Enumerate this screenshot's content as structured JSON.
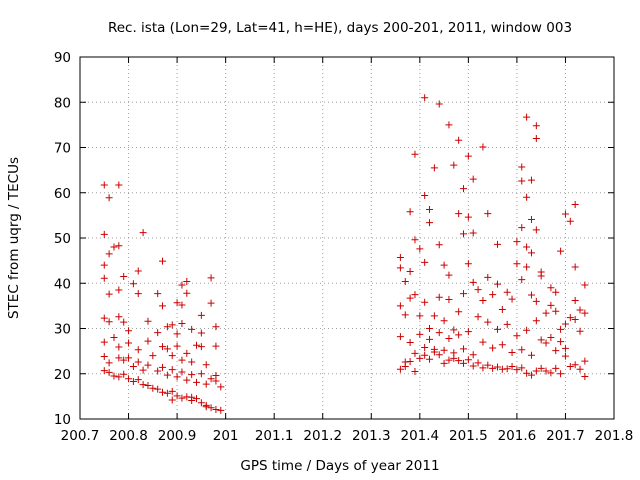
{
  "chart_data": {
    "type": "scatter",
    "title": "Rec. ista (Lon=29, Lat=41, h=HE), days 200-201, 2011, window 003",
    "xlabel": "GPS time / Days of year 2011",
    "ylabel": "STEC from uqrg / TECUs",
    "xlim": [
      200.7,
      201.8
    ],
    "ylim": [
      10,
      90
    ],
    "x_ticks": [
      "200.7",
      "200.8",
      "200.9",
      "201",
      "201.1",
      "201.2",
      "201.3",
      "201.4",
      "201.5",
      "201.6",
      "201.7",
      "201.8"
    ],
    "y_ticks": [
      "10",
      "20",
      "30",
      "40",
      "50",
      "60",
      "70",
      "80",
      "90"
    ],
    "grid": true,
    "marker": "+",
    "color": "#cc0000",
    "series": [
      {
        "name": "STEC",
        "points": [
          [
            200.75,
            61.7
          ],
          [
            200.78,
            61.7
          ],
          [
            200.76,
            58.9
          ],
          [
            200.83,
            51.2
          ],
          [
            200.75,
            50.8
          ],
          [
            200.77,
            48.0
          ],
          [
            200.78,
            48.3
          ],
          [
            200.76,
            46.5
          ],
          [
            200.87,
            44.9
          ],
          [
            200.75,
            44.0
          ],
          [
            200.82,
            42.7
          ],
          [
            200.79,
            41.5
          ],
          [
            200.75,
            41.1
          ],
          [
            200.81,
            39.9
          ],
          [
            200.78,
            38.5
          ],
          [
            200.76,
            37.6
          ],
          [
            200.82,
            37.7
          ],
          [
            200.86,
            37.7
          ],
          [
            200.87,
            35.0
          ],
          [
            200.9,
            35.7
          ],
          [
            200.92,
            40.4
          ],
          [
            200.91,
            39.6
          ],
          [
            200.92,
            37.8
          ],
          [
            200.91,
            35.2
          ],
          [
            200.97,
            41.2
          ],
          [
            200.97,
            35.6
          ],
          [
            200.95,
            32.9
          ],
          [
            200.98,
            30.4
          ],
          [
            200.95,
            29.0
          ],
          [
            200.98,
            26.1
          ],
          [
            200.75,
            32.3
          ],
          [
            200.76,
            31.5
          ],
          [
            200.78,
            32.6
          ],
          [
            200.79,
            31.4
          ],
          [
            200.84,
            31.6
          ],
          [
            200.8,
            29.5
          ],
          [
            200.86,
            29.1
          ],
          [
            200.88,
            30.4
          ],
          [
            200.89,
            30.8
          ],
          [
            200.9,
            28.8
          ],
          [
            200.91,
            31.1
          ],
          [
            200.93,
            29.8
          ],
          [
            200.75,
            27.0
          ],
          [
            200.77,
            28.0
          ],
          [
            200.78,
            25.9
          ],
          [
            200.8,
            26.8
          ],
          [
            200.82,
            25.3
          ],
          [
            200.84,
            27.2
          ],
          [
            200.85,
            24.0
          ],
          [
            200.87,
            26.0
          ],
          [
            200.88,
            25.5
          ],
          [
            200.89,
            24.0
          ],
          [
            200.9,
            26.1
          ],
          [
            200.91,
            23.0
          ],
          [
            200.92,
            24.5
          ],
          [
            200.93,
            22.6
          ],
          [
            200.94,
            26.3
          ],
          [
            200.95,
            26.0
          ],
          [
            200.96,
            22.0
          ],
          [
            200.75,
            23.8
          ],
          [
            200.76,
            22.4
          ],
          [
            200.78,
            23.5
          ],
          [
            200.79,
            23.0
          ],
          [
            200.8,
            23.5
          ],
          [
            200.81,
            21.6
          ],
          [
            200.82,
            22.6
          ],
          [
            200.83,
            20.8
          ],
          [
            200.84,
            21.9
          ],
          [
            200.86,
            20.6
          ],
          [
            200.87,
            21.4
          ],
          [
            200.88,
            19.7
          ],
          [
            200.89,
            20.9
          ],
          [
            200.9,
            19.3
          ],
          [
            200.91,
            20.4
          ],
          [
            200.92,
            18.6
          ],
          [
            200.93,
            19.8
          ],
          [
            200.94,
            18.1
          ],
          [
            200.95,
            20.0
          ],
          [
            200.96,
            17.7
          ],
          [
            200.97,
            18.9
          ],
          [
            200.98,
            19.6
          ],
          [
            200.98,
            18.4
          ],
          [
            200.99,
            17.1
          ],
          [
            200.75,
            20.7
          ],
          [
            200.76,
            20.3
          ],
          [
            200.77,
            19.5
          ],
          [
            200.78,
            19.3
          ],
          [
            200.79,
            19.9
          ],
          [
            200.8,
            18.9
          ],
          [
            200.81,
            18.3
          ],
          [
            200.82,
            18.7
          ],
          [
            200.83,
            17.6
          ],
          [
            200.84,
            17.4
          ],
          [
            200.85,
            16.8
          ],
          [
            200.86,
            16.6
          ],
          [
            200.87,
            15.9
          ],
          [
            200.88,
            15.7
          ],
          [
            200.89,
            16.1
          ],
          [
            200.9,
            15.1
          ],
          [
            200.91,
            14.6
          ],
          [
            200.92,
            14.9
          ],
          [
            200.93,
            14.1
          ],
          [
            200.94,
            14.5
          ],
          [
            200.95,
            13.6
          ],
          [
            200.96,
            13.0
          ],
          [
            200.97,
            12.5
          ],
          [
            200.98,
            12.1
          ],
          [
            200.99,
            11.9
          ],
          [
            200.89,
            14.2
          ],
          [
            200.93,
            14.8
          ],
          [
            200.96,
            12.7
          ],
          [
            201.36,
            45.7
          ],
          [
            201.36,
            43.4
          ],
          [
            201.37,
            40.4
          ],
          [
            201.38,
            55.8
          ],
          [
            201.39,
            49.6
          ],
          [
            201.4,
            47.6
          ],
          [
            201.39,
            68.5
          ],
          [
            201.41,
            81.0
          ],
          [
            201.41,
            59.4
          ],
          [
            201.42,
            53.4
          ],
          [
            201.43,
            65.5
          ],
          [
            201.44,
            79.6
          ],
          [
            201.46,
            75.0
          ],
          [
            201.47,
            66.1
          ],
          [
            201.48,
            71.6
          ],
          [
            201.49,
            60.9
          ],
          [
            201.5,
            68.1
          ],
          [
            201.51,
            63.0
          ],
          [
            201.53,
            70.1
          ],
          [
            201.48,
            55.4
          ],
          [
            201.49,
            50.9
          ],
          [
            201.5,
            54.6
          ],
          [
            201.51,
            51.1
          ],
          [
            201.54,
            55.4
          ],
          [
            201.56,
            48.6
          ],
          [
            201.44,
            48.5
          ],
          [
            201.42,
            56.3
          ],
          [
            201.45,
            44.0
          ],
          [
            201.46,
            41.8
          ],
          [
            201.41,
            44.6
          ],
          [
            201.38,
            42.6
          ],
          [
            201.36,
            35.0
          ],
          [
            201.37,
            33.0
          ],
          [
            201.38,
            36.7
          ],
          [
            201.39,
            37.5
          ],
          [
            201.4,
            32.8
          ],
          [
            201.41,
            35.8
          ],
          [
            201.42,
            30.0
          ],
          [
            201.43,
            32.8
          ],
          [
            201.44,
            36.9
          ],
          [
            201.45,
            31.7
          ],
          [
            201.46,
            36.4
          ],
          [
            201.47,
            29.7
          ],
          [
            201.48,
            33.7
          ],
          [
            201.49,
            37.7
          ],
          [
            201.5,
            44.3
          ],
          [
            201.51,
            40.2
          ],
          [
            201.52,
            38.6
          ],
          [
            201.53,
            36.2
          ],
          [
            201.54,
            41.3
          ],
          [
            201.55,
            37.5
          ],
          [
            201.56,
            39.8
          ],
          [
            201.57,
            34.2
          ],
          [
            201.58,
            38.0
          ],
          [
            201.59,
            36.5
          ],
          [
            201.6,
            44.3
          ],
          [
            201.61,
            40.8
          ],
          [
            201.62,
            43.6
          ],
          [
            201.63,
            37.4
          ],
          [
            201.64,
            36.0
          ],
          [
            201.65,
            41.6
          ],
          [
            201.36,
            28.2
          ],
          [
            201.37,
            22.6
          ],
          [
            201.38,
            26.9
          ],
          [
            201.39,
            24.5
          ],
          [
            201.4,
            28.7
          ],
          [
            201.41,
            25.8
          ],
          [
            201.42,
            27.6
          ],
          [
            201.43,
            24.8
          ],
          [
            201.44,
            29.1
          ],
          [
            201.45,
            25.2
          ],
          [
            201.46,
            27.8
          ],
          [
            201.47,
            23.4
          ],
          [
            201.48,
            28.6
          ],
          [
            201.49,
            25.5
          ],
          [
            201.5,
            29.3
          ],
          [
            201.51,
            24.2
          ],
          [
            201.52,
            32.6
          ],
          [
            201.53,
            27.0
          ],
          [
            201.54,
            31.4
          ],
          [
            201.55,
            25.7
          ],
          [
            201.56,
            29.8
          ],
          [
            201.57,
            26.4
          ],
          [
            201.58,
            30.9
          ],
          [
            201.59,
            24.7
          ],
          [
            201.6,
            28.4
          ],
          [
            201.61,
            25.3
          ],
          [
            201.62,
            29.6
          ],
          [
            201.63,
            24.1
          ],
          [
            201.64,
            31.7
          ],
          [
            201.65,
            27.5
          ],
          [
            201.36,
            21.0
          ],
          [
            201.37,
            21.6
          ],
          [
            201.38,
            22.7
          ],
          [
            201.39,
            20.5
          ],
          [
            201.4,
            23.4
          ],
          [
            201.41,
            24.1
          ],
          [
            201.42,
            23.2
          ],
          [
            201.43,
            25.4
          ],
          [
            201.44,
            24.2
          ],
          [
            201.45,
            22.3
          ],
          [
            201.46,
            23.0
          ],
          [
            201.47,
            24.6
          ],
          [
            201.48,
            22.9
          ],
          [
            201.49,
            22.3
          ],
          [
            201.5,
            23.1
          ],
          [
            201.51,
            21.7
          ],
          [
            201.52,
            22.4
          ],
          [
            201.53,
            21.3
          ],
          [
            201.54,
            21.9
          ],
          [
            201.55,
            21.2
          ],
          [
            201.56,
            21.5
          ],
          [
            201.57,
            21.0
          ],
          [
            201.58,
            21.1
          ],
          [
            201.59,
            21.6
          ],
          [
            201.6,
            20.9
          ],
          [
            201.61,
            21.3
          ],
          [
            201.62,
            20.1
          ],
          [
            201.63,
            19.7
          ],
          [
            201.64,
            20.6
          ],
          [
            201.65,
            21.2
          ],
          [
            201.6,
            49.2
          ],
          [
            201.61,
            65.7
          ],
          [
            201.61,
            62.6
          ],
          [
            201.63,
            62.8
          ],
          [
            201.62,
            76.7
          ],
          [
            201.64,
            74.8
          ],
          [
            201.64,
            72.0
          ],
          [
            201.62,
            59.0
          ],
          [
            201.61,
            52.3
          ],
          [
            201.63,
            54.1
          ],
          [
            201.64,
            51.8
          ],
          [
            201.62,
            48.0
          ],
          [
            201.63,
            46.7
          ],
          [
            201.65,
            42.5
          ],
          [
            201.67,
            39.0
          ],
          [
            201.68,
            38.0
          ],
          [
            201.69,
            47.1
          ],
          [
            201.7,
            55.3
          ],
          [
            201.71,
            53.7
          ],
          [
            201.72,
            57.4
          ],
          [
            201.72,
            43.6
          ],
          [
            201.72,
            36.2
          ],
          [
            201.74,
            39.6
          ],
          [
            201.73,
            34.1
          ],
          [
            201.74,
            33.4
          ],
          [
            201.66,
            33.4
          ],
          [
            201.67,
            35.1
          ],
          [
            201.68,
            33.8
          ],
          [
            201.69,
            29.8
          ],
          [
            201.7,
            31.0
          ],
          [
            201.71,
            32.4
          ],
          [
            201.72,
            32.0
          ],
          [
            201.73,
            29.4
          ],
          [
            201.66,
            26.8
          ],
          [
            201.67,
            28.0
          ],
          [
            201.68,
            25.1
          ],
          [
            201.69,
            27.1
          ],
          [
            201.7,
            23.9
          ],
          [
            201.71,
            21.6
          ],
          [
            201.72,
            22.0
          ],
          [
            201.73,
            21.0
          ],
          [
            201.74,
            22.8
          ],
          [
            201.74,
            19.4
          ],
          [
            201.66,
            20.6
          ],
          [
            201.67,
            20.2
          ],
          [
            201.68,
            21.2
          ],
          [
            201.69,
            20.0
          ],
          [
            201.7,
            25.6
          ]
        ]
      }
    ]
  }
}
